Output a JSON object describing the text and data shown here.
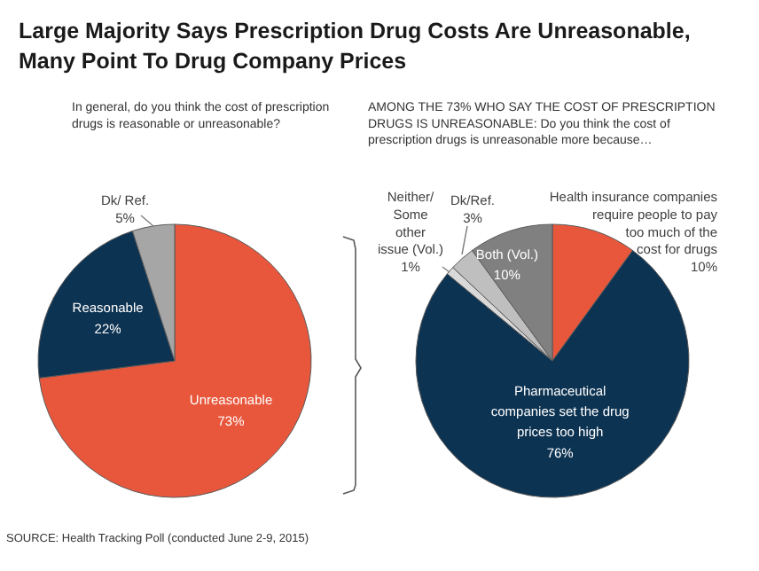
{
  "chart_data": [
    {
      "type": "pie",
      "title": "Large Majority Says Prescription Drug Costs Are Unreasonable, Many Point To Drug Company Prices",
      "subtitle": "In general, do you think the cost of prescription drugs is reasonable or unreasonable?",
      "categories": [
        "Unreasonable",
        "Reasonable",
        "Dk/ Ref."
      ],
      "values": [
        73,
        22,
        5
      ],
      "value_labels": [
        "73%",
        "22%",
        "5%"
      ],
      "colors": [
        "#e8573c",
        "#0d3352",
        "#a6a6a6"
      ],
      "annotations": [
        "SOURCE: Health Tracking Poll (conducted June 2-9, 2015)"
      ]
    },
    {
      "type": "pie",
      "subtitle": "AMONG THE 73% WHO SAY THE COST OF PRESCRIPTION DRUGS IS UNREASONABLE: Do you think the cost of prescription drugs is unreasonable more because…",
      "categories": [
        "Health insurance companies require people to pay too much of the cost for drugs",
        "Pharmaceutical companies set the drug prices too high",
        "Neither/ Some other issue (Vol.)",
        "Dk/Ref.",
        "Both (Vol.)"
      ],
      "values": [
        10,
        76,
        1,
        3,
        10
      ],
      "value_labels": [
        "10%",
        "76%",
        "1%",
        "3%",
        "10%"
      ],
      "colors": [
        "#e8573c",
        "#0d3352",
        "#d9d9d9",
        "#bfbfbf",
        "#808080"
      ]
    }
  ]
}
